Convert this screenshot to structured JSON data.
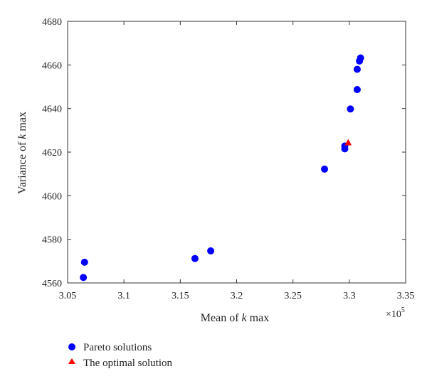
{
  "chart_data": {
    "type": "scatter",
    "xlabel_prefix": "Mean of ",
    "xlabel_var": "k",
    "xlabel_suffix": " max",
    "ylabel_prefix": "Variance of ",
    "ylabel_var": "k",
    "ylabel_suffix": " max",
    "x_multiplier": {
      "base": "×10",
      "exponent": "5"
    },
    "xlim": [
      3.05,
      3.35
    ],
    "ylim": [
      4560,
      4680
    ],
    "x_ticks": [
      3.05,
      3.1,
      3.15,
      3.2,
      3.25,
      3.3,
      3.35
    ],
    "x_tick_labels": [
      "3.05",
      "3.1",
      "3.15",
      "3.2",
      "3.25",
      "3.3",
      "3.35"
    ],
    "y_ticks": [
      4560,
      4580,
      4600,
      4620,
      4640,
      4660,
      4680
    ],
    "y_tick_labels": [
      "4560",
      "4580",
      "4600",
      "4620",
      "4640",
      "4660",
      "4680"
    ],
    "grid": false,
    "legend_position": "below",
    "series": [
      {
        "name": "Pareto solutions",
        "marker": "circle",
        "color": "#0000ff",
        "points": [
          [
            3.064,
            4562.5
          ],
          [
            3.065,
            4569.5
          ],
          [
            3.163,
            4571.2
          ],
          [
            3.177,
            4574.7
          ],
          [
            3.278,
            4612.2
          ],
          [
            3.296,
            4621.5
          ],
          [
            3.296,
            4622.8
          ],
          [
            3.301,
            4639.8
          ],
          [
            3.307,
            4648.7
          ],
          [
            3.307,
            4658.0
          ],
          [
            3.309,
            4661.8
          ],
          [
            3.31,
            4663.2
          ]
        ]
      },
      {
        "name": "The optimal solution",
        "marker": "triangle",
        "color": "#ff0000",
        "points": [
          [
            3.299,
            4624.4
          ]
        ]
      }
    ]
  }
}
